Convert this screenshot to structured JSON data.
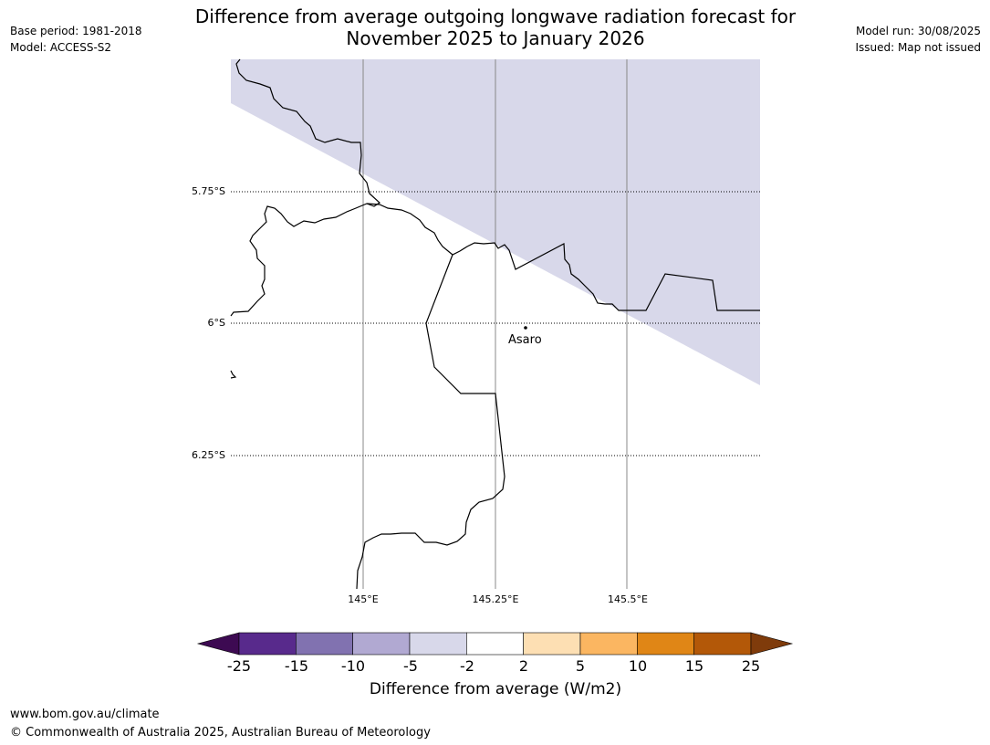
{
  "header": {
    "base_period": "Base period: 1981-2018",
    "model": "Model: ACCESS-S2",
    "model_run": "Model run: 30/08/2025",
    "issued": "Issued: Map not issued",
    "title_line1": "Difference from average outgoing longwave radiation forecast for",
    "title_line2": "November 2025 to January 2026"
  },
  "map": {
    "lat_ticks": [
      "5.75°S",
      "6°S",
      "6.25°S"
    ],
    "lon_ticks": [
      "145°E",
      "145.25°E",
      "145.5°E"
    ],
    "place": {
      "name": "Asaro"
    },
    "colors": {
      "shaded_region": "#d8d8ea",
      "boundary": "#000000",
      "grid": "#888888"
    }
  },
  "colorbar": {
    "title": "Difference from average (W/m2)",
    "labels": [
      "-25",
      "-15",
      "-10",
      "-5",
      "-2",
      "2",
      "5",
      "10",
      "15",
      "25"
    ],
    "colors": [
      "#582a8c",
      "#8172b0",
      "#b1a9d2",
      "#d8d8ea",
      "#ffffff",
      "#fddfb3",
      "#fbb661",
      "#e08616",
      "#b35808"
    ],
    "under_color": "#3d0a52",
    "over_color": "#7f3b0b"
  },
  "footer": {
    "url": "www.bom.gov.au/climate",
    "copyright": "© Commonwealth of Australia 2025, Australian Bureau of Meteorology"
  }
}
